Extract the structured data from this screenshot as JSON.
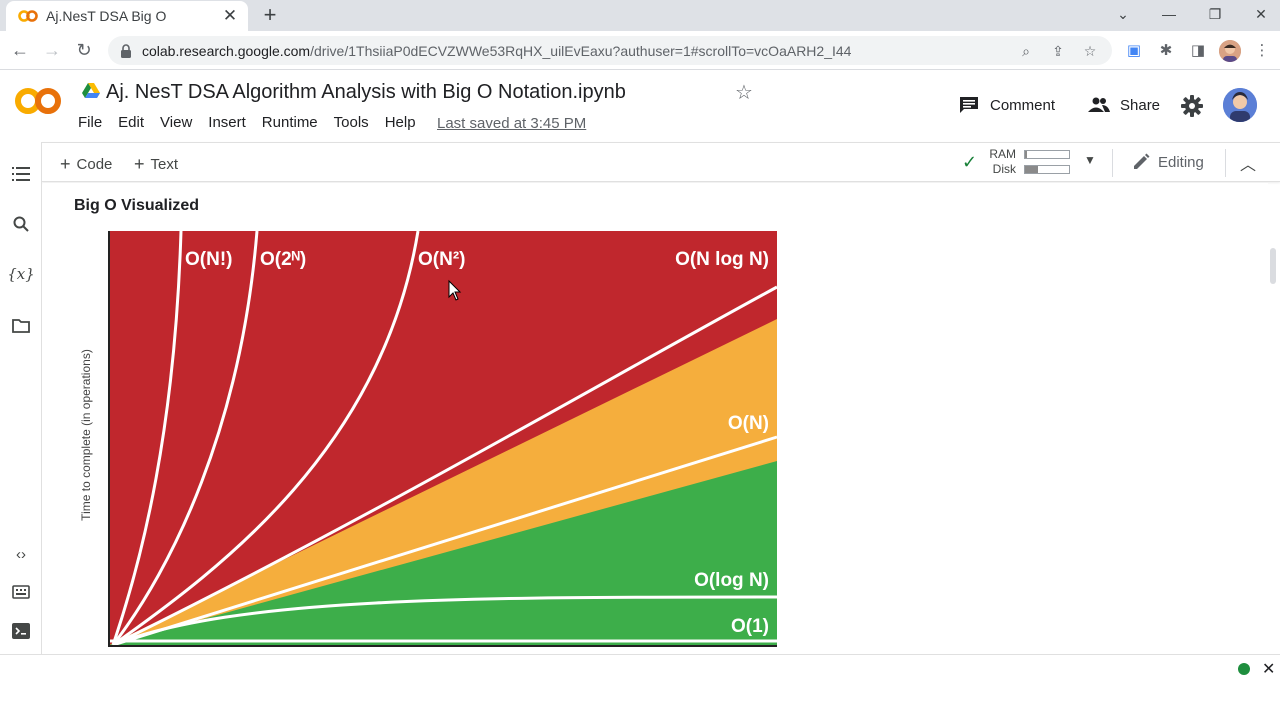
{
  "browser": {
    "tab_title": "Aj.NesT DSA Big O",
    "url_host": "colab.research.google.com",
    "url_path": "/drive/1ThsiiaP0dECVZWWe53RqHX_uilEvEaxu?authuser=1#scrollTo=vcOaARH2_I44"
  },
  "notebook": {
    "title": "Aj. NesT DSA Algorithm Analysis with Big O Notation.ipynb",
    "menu": [
      "File",
      "Edit",
      "View",
      "Insert",
      "Runtime",
      "Tools",
      "Help"
    ],
    "last_saved": "Last saved at 3:45 PM",
    "comment_label": "Comment",
    "share_label": "Share"
  },
  "cell_toolbar": {
    "add_code": "Code",
    "add_text": "Text",
    "ram_label": "RAM",
    "disk_label": "Disk",
    "ram_fraction": 0.04,
    "disk_fraction": 0.3,
    "editing_label": "Editing"
  },
  "content": {
    "section_title": "Big O Visualized"
  },
  "chart_data": {
    "type": "area",
    "ylabel": "Time to complete (in operations)",
    "xlabel": "",
    "series": [
      {
        "name": "O(N!)",
        "color": "#ffffff"
      },
      {
        "name": "O(2ᴺ)",
        "color": "#ffffff"
      },
      {
        "name": "O(N²)",
        "color": "#ffffff"
      },
      {
        "name": "O(N log N)",
        "color": "#ffffff"
      },
      {
        "name": "O(N)",
        "color": "#ffffff"
      },
      {
        "name": "O(log N)",
        "color": "#ffffff"
      },
      {
        "name": "O(1)",
        "color": "#ffffff"
      }
    ],
    "regions": {
      "bad": "#c0272d",
      "fair": "#f5ae3d",
      "good": "#3dae4a"
    },
    "grid": false
  }
}
